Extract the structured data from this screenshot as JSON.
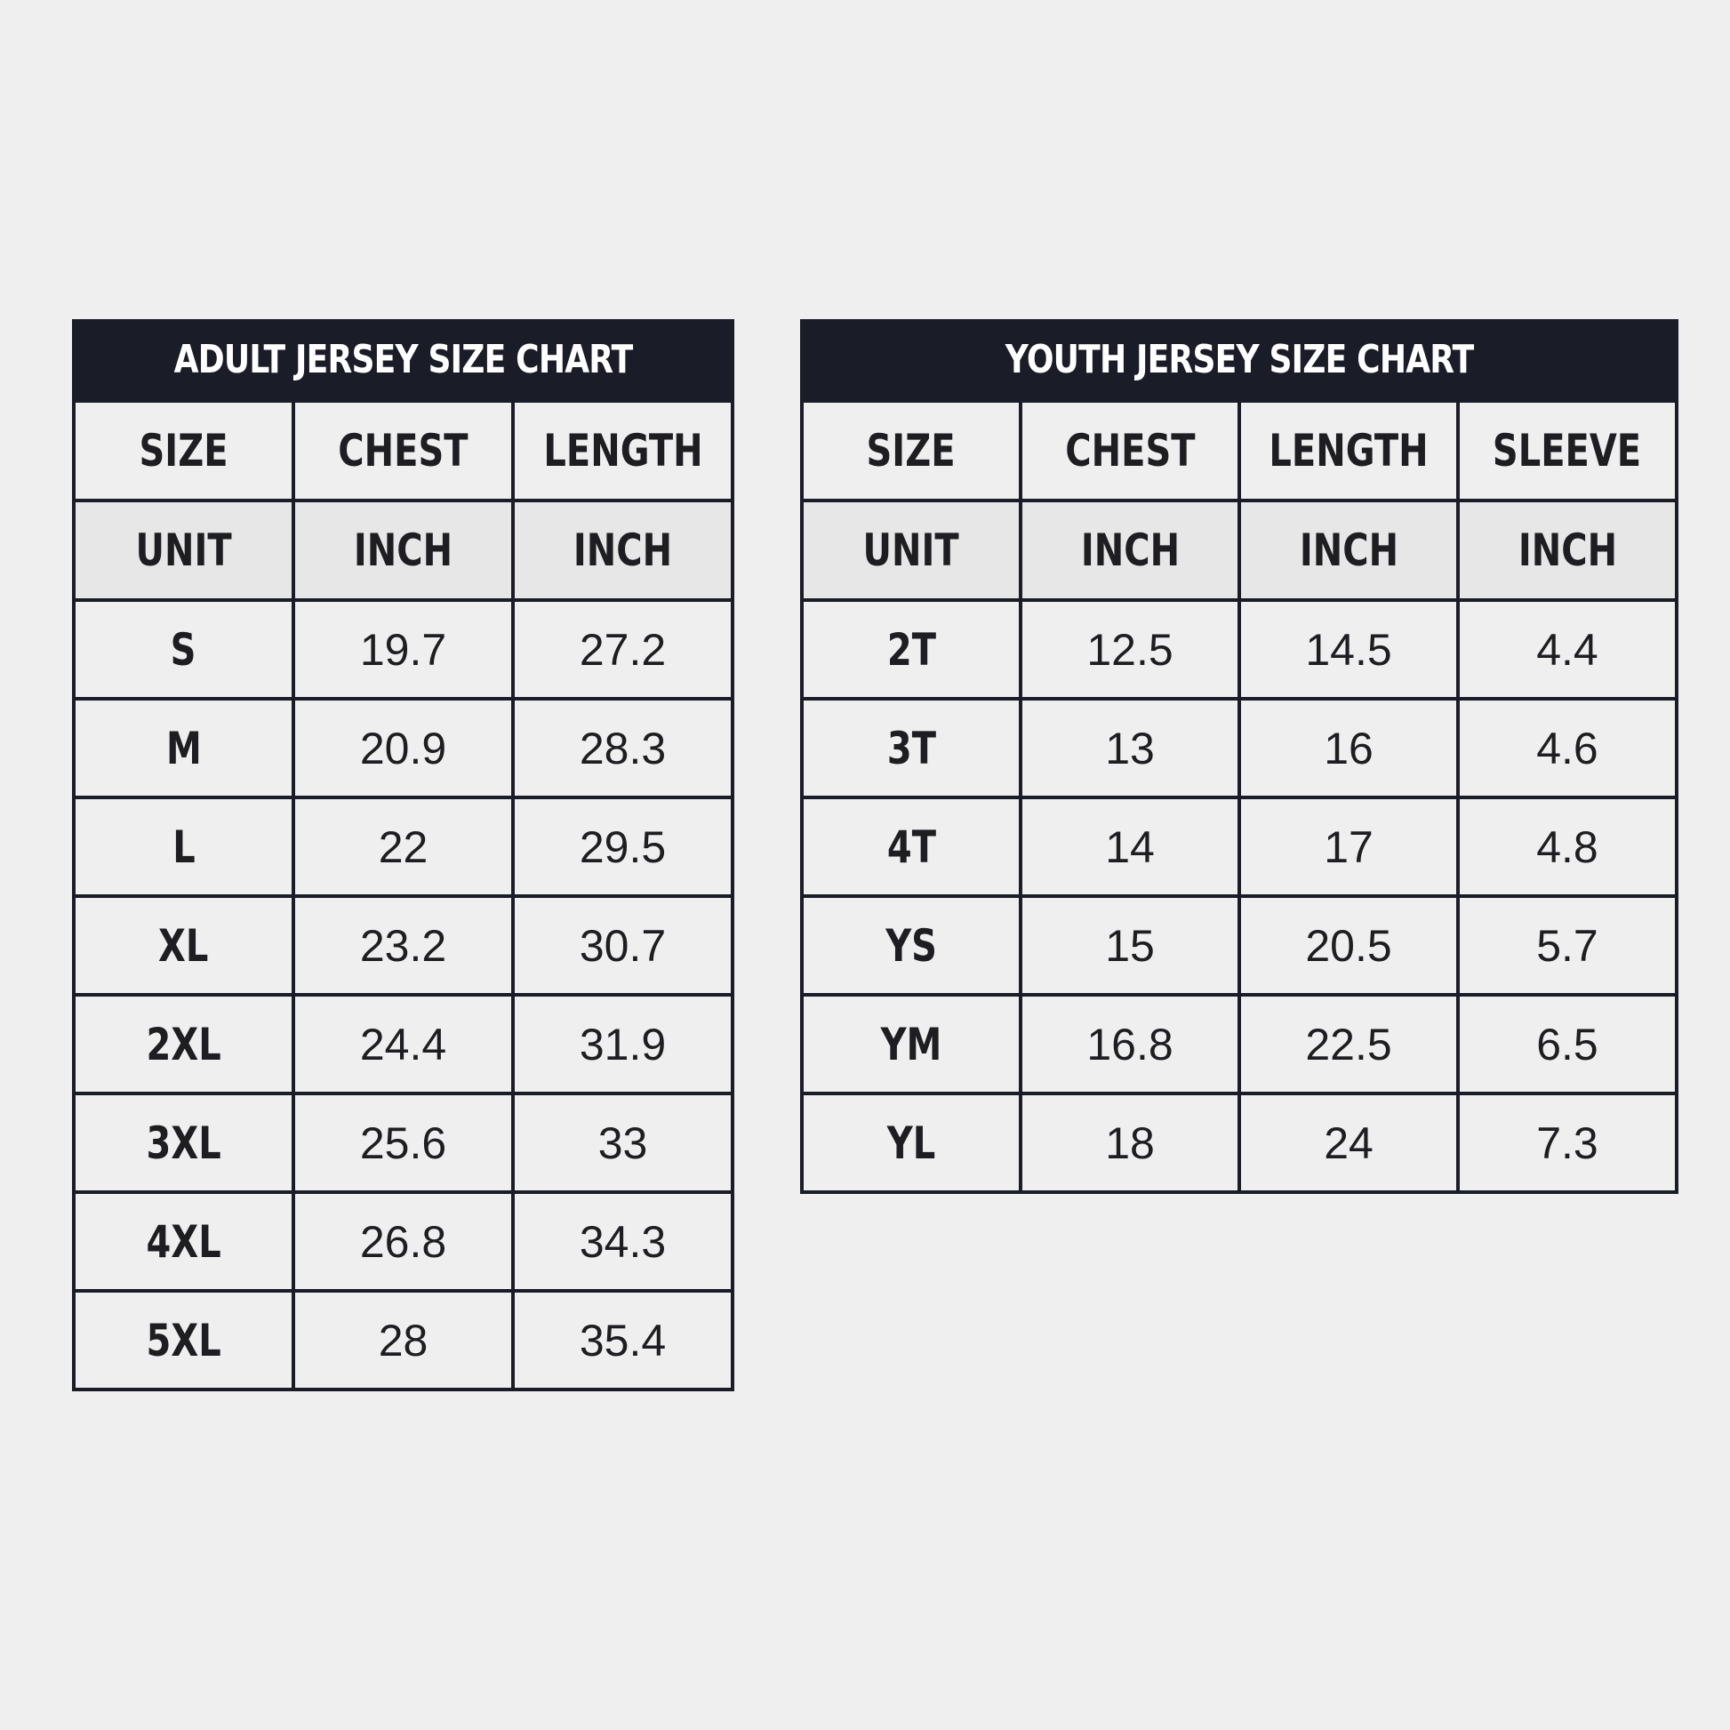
{
  "adult": {
    "title": "ADULT JERSEY SIZE CHART",
    "headers": [
      "SIZE",
      "CHEST",
      "LENGTH"
    ],
    "units": [
      "UNIT",
      "INCH",
      "INCH"
    ],
    "rows": [
      [
        "S",
        "19.7",
        "27.2"
      ],
      [
        "M",
        "20.9",
        "28.3"
      ],
      [
        "L",
        "22",
        "29.5"
      ],
      [
        "XL",
        "23.2",
        "30.7"
      ],
      [
        "2XL",
        "24.4",
        "31.9"
      ],
      [
        "3XL",
        "25.6",
        "33"
      ],
      [
        "4XL",
        "26.8",
        "34.3"
      ],
      [
        "5XL",
        "28",
        "35.4"
      ]
    ]
  },
  "youth": {
    "title": "YOUTH JERSEY SIZE CHART",
    "headers": [
      "SIZE",
      "CHEST",
      "LENGTH",
      "SLEEVE"
    ],
    "units": [
      "UNIT",
      "INCH",
      "INCH",
      "INCH"
    ],
    "rows": [
      [
        "2T",
        "12.5",
        "14.5",
        "4.4"
      ],
      [
        "3T",
        "13",
        "16",
        "4.6"
      ],
      [
        "4T",
        "14",
        "17",
        "4.8"
      ],
      [
        "YS",
        "15",
        "20.5",
        "5.7"
      ],
      [
        "YM",
        "16.8",
        "22.5",
        "6.5"
      ],
      [
        "YL",
        "18",
        "24",
        "7.3"
      ]
    ]
  },
  "colors": {
    "background": "#efefef",
    "header_bar": "#1a1c28",
    "grid": "#1a1c28",
    "text": "#1e1e22"
  }
}
